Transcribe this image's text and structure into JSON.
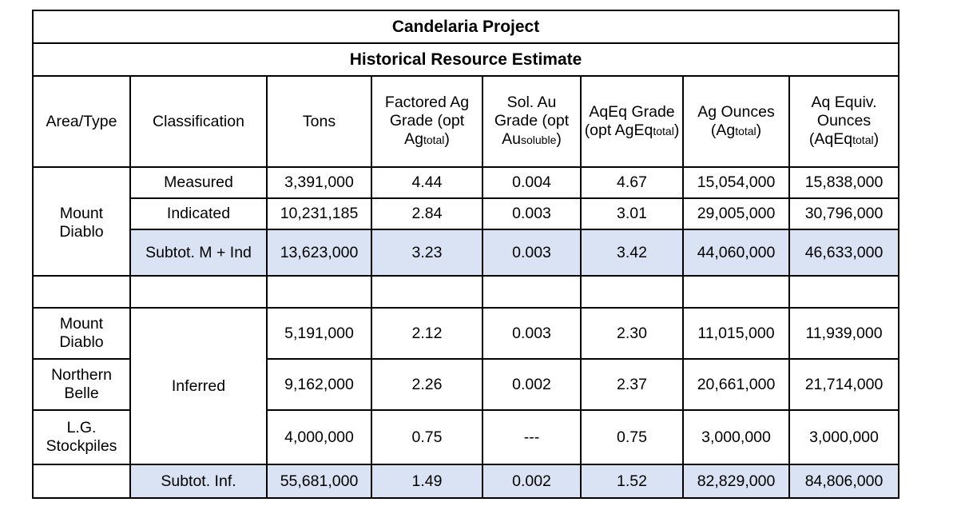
{
  "title": "Candelaria Project",
  "subtitle": "Historical Resource Estimate",
  "headers": {
    "area_type": "Area/Type",
    "classification": "Classification",
    "tons": "Tons",
    "factored": {
      "main": "Factored Ag Grade (opt Ag",
      "sub": "total",
      "end": ")"
    },
    "sol_au": {
      "main": "Sol. Au Grade (opt Au",
      "sub": "soluble",
      "end": ")"
    },
    "aqeq_grade": {
      "main": "AqEq Grade (opt AgEq",
      "sub": "total",
      "end": ")"
    },
    "ag_ounces": {
      "main": "Ag Ounces (Ag",
      "sub": "total",
      "end": ")"
    },
    "aq_equiv": {
      "main": "Aq Equiv. Ounces (AqEq",
      "sub": "total",
      "end": ")"
    }
  },
  "areas": {
    "mount_diablo": "Mount Diablo",
    "mount_diablo_2": "Mount Diablo",
    "northern_belle": "Northern Belle",
    "lg_stockpiles": "L.G. Stockpiles"
  },
  "classes": {
    "inferred": "Inferred"
  },
  "rows": {
    "measured": {
      "classification": "Measured",
      "tons": "3,391,000",
      "factored": "4.44",
      "sol_au": "0.004",
      "aqeq": "4.67",
      "ag_oz": "15,054,000",
      "aq_equiv": "15,838,000"
    },
    "indicated": {
      "classification": "Indicated",
      "tons": "10,231,185",
      "factored": "2.84",
      "sol_au": "0.003",
      "aqeq": "3.01",
      "ag_oz": "29,005,000",
      "aq_equiv": "30,796,000"
    },
    "subtot_mi": {
      "classification": "Subtot. M + Ind",
      "tons": "13,623,000",
      "factored": "3.23",
      "sol_au": "0.003",
      "aqeq": "3.42",
      "ag_oz": "44,060,000",
      "aq_equiv": "46,633,000"
    },
    "inf_md": {
      "tons": "5,191,000",
      "factored": "2.12",
      "sol_au": "0.003",
      "aqeq": "2.30",
      "ag_oz": "11,015,000",
      "aq_equiv": "11,939,000"
    },
    "inf_nb": {
      "tons": "9,162,000",
      "factored": "2.26",
      "sol_au": "0.002",
      "aqeq": "2.37",
      "ag_oz": "20,661,000",
      "aq_equiv": "21,714,000"
    },
    "inf_lg": {
      "tons": "4,000,000",
      "factored": "0.75",
      "sol_au": "---",
      "aqeq": "0.75",
      "ag_oz": "3,000,000",
      "aq_equiv": "3,000,000"
    },
    "subtot_inf": {
      "classification": "Subtot. Inf.",
      "tons": "55,681,000",
      "factored": "1.49",
      "sol_au": "0.002",
      "aqeq": "1.52",
      "ag_oz": "82,829,000",
      "aq_equiv": "84,806,000"
    }
  },
  "colors": {
    "subtotal_bg": "#dae3f3",
    "border": "#000000"
  }
}
